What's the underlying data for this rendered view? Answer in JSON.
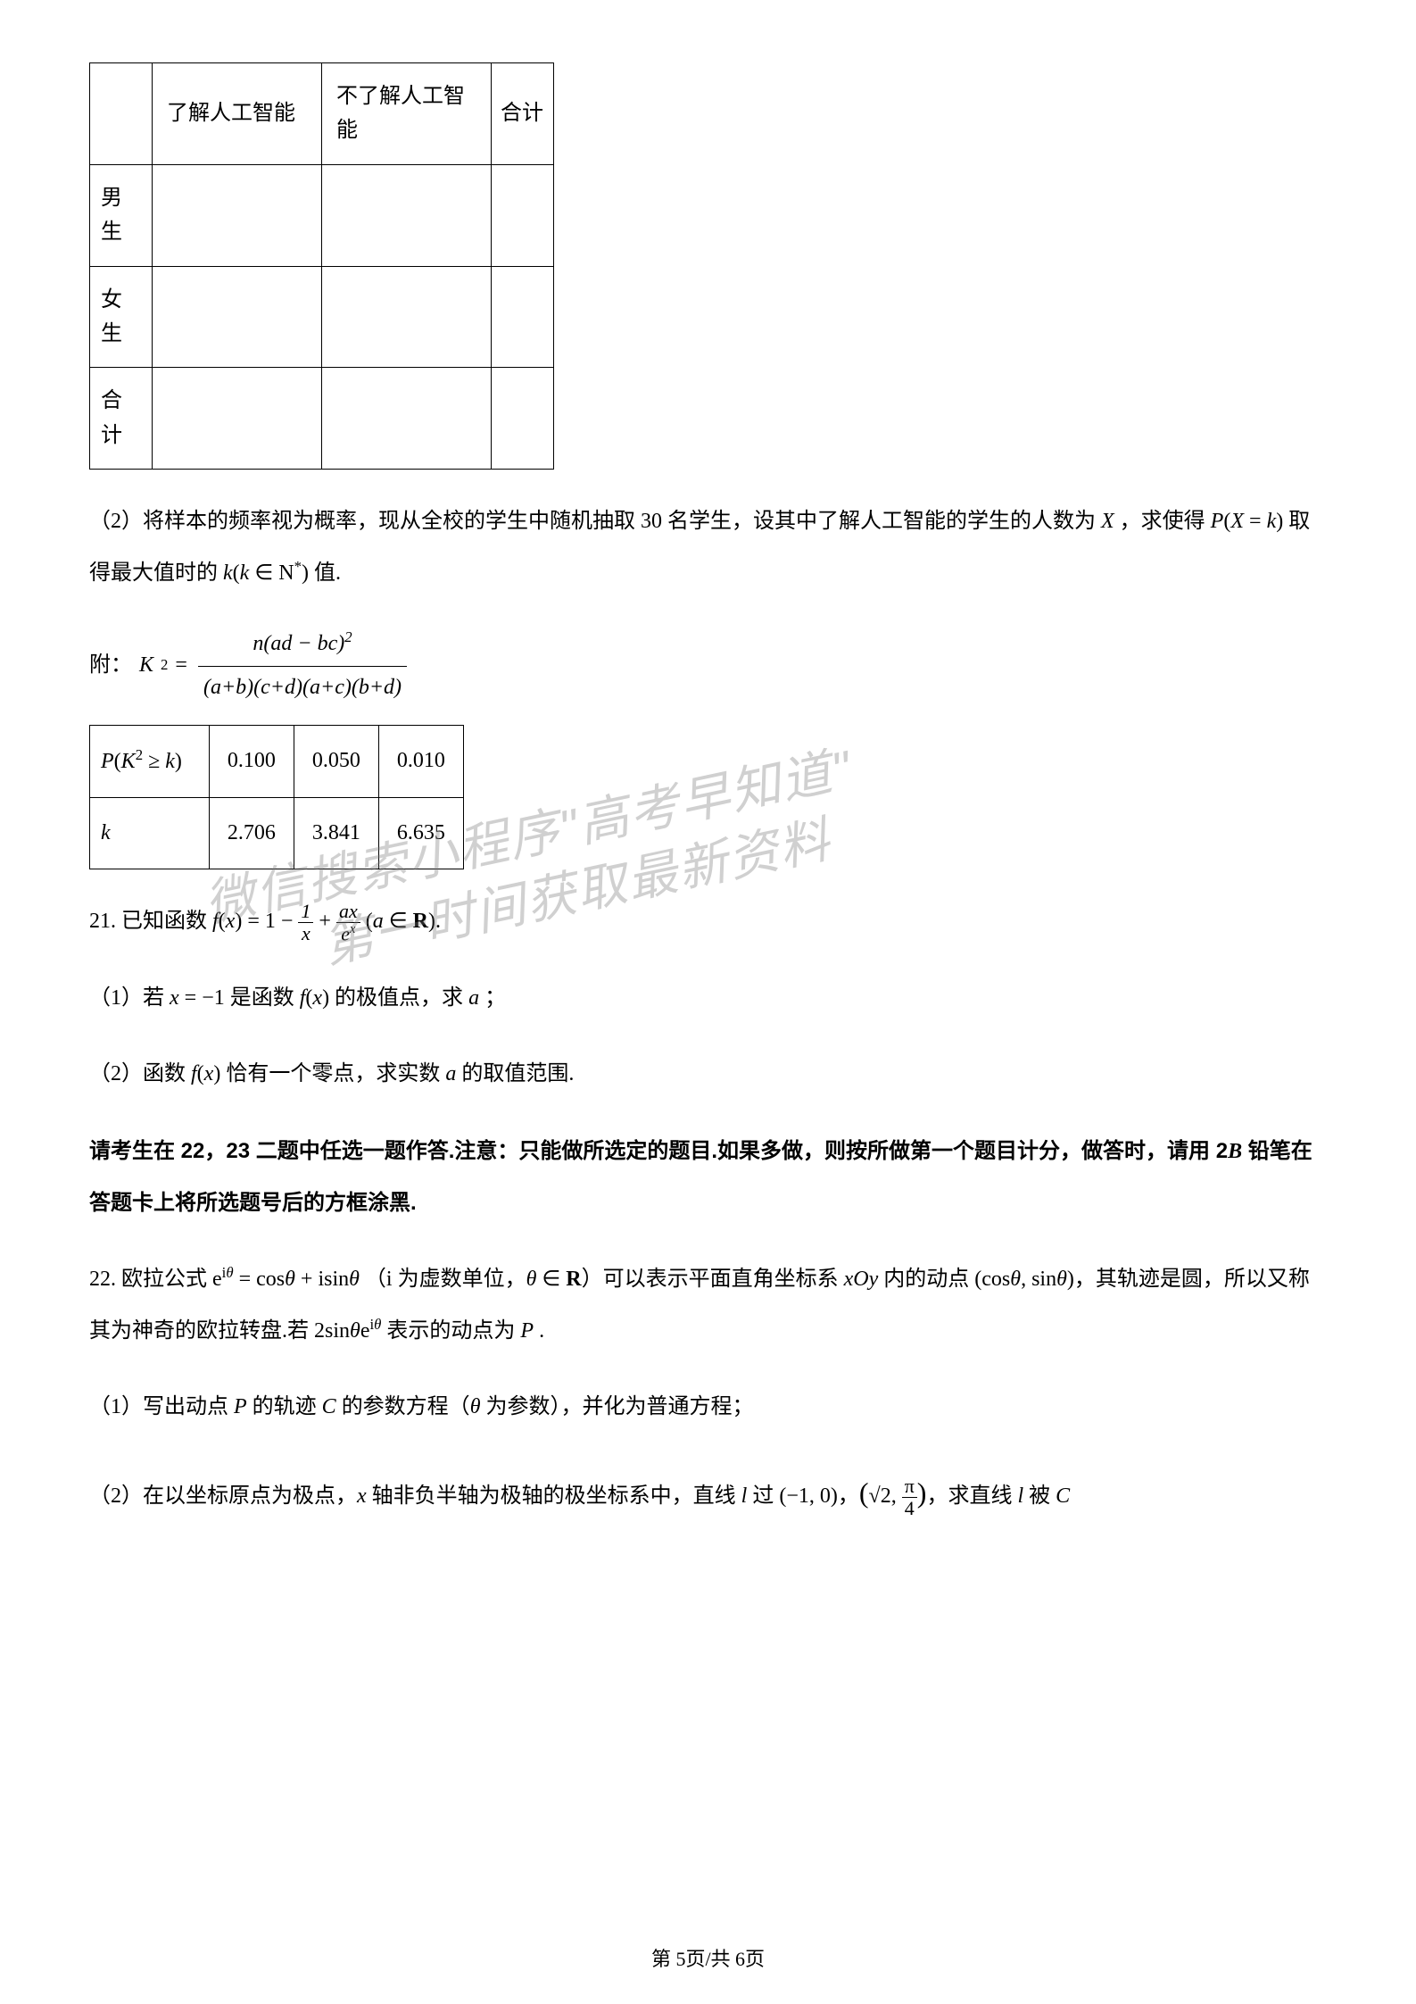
{
  "table1": {
    "headers": [
      "",
      "了解人工智能",
      "不了解人工智能",
      "合计"
    ],
    "rows": [
      "男生",
      "女生",
      "合计"
    ],
    "cells": [
      [
        "",
        "",
        ""
      ],
      [
        "",
        "",
        ""
      ],
      [
        "",
        "",
        ""
      ]
    ]
  },
  "q20_part2": "（2）将样本的频率视为概率，现从全校的学生中随机抽取 30 名学生，设其中了解人工智能的学生的人数为 X ，求使得 P(X = k) 取得最大值时的 k(k ∈ N*) 值.",
  "formula_label": "附：",
  "formula_k2": "K² =",
  "formula_numerator": "n(ad − bc)²",
  "formula_denominator": "(a+b)(c+d)(a+c)(b+d)",
  "table2": {
    "row1_label": "P(K² ≥ k)",
    "row1_values": [
      "0.100",
      "0.050",
      "0.010"
    ],
    "row2_label": "k",
    "row2_values": [
      "2.706",
      "3.841",
      "6.635"
    ]
  },
  "q21": {
    "number": "21.",
    "stem_prefix": "已知函数 ",
    "stem_formula": "f(x) = 1 − 1/x + ax/eˣ (a ∈ R)",
    "stem_suffix": ".",
    "part1": "（1）若 x = −1 是函数 f(x) 的极值点，求 a ；",
    "part2": "（2）函数 f(x) 恰有一个零点，求实数 a 的取值范围."
  },
  "instruction": "请考生在 22，23 二题中任选一题作答.注意：只能做所选定的题目.如果多做，则按所做第一个题目计分，做答时，请用 2B 铅笔在答题卡上将所选题号后的方框涂黑.",
  "q22": {
    "number": "22.",
    "stem": "欧拉公式 eⁱᶿ = cosθ + isinθ （i 为虚数单位，θ ∈ R）可以表示平面直角坐标系 xOy 内的动点 (cosθ, sinθ)，其轨迹是圆，所以又称其为神奇的欧拉转盘.若 2sinθeⁱᶿ 表示的动点为 P .",
    "part1": "（1）写出动点 P 的轨迹 C 的参数方程（θ 为参数），并化为普通方程；",
    "part2_prefix": "（2）在以坐标原点为极点，x 轴非负半轴为极轴的极坐标系中，直线 l 过 (−1,0)，",
    "part2_point": "(√2, π/4)",
    "part2_suffix": "，求直线 l 被 C"
  },
  "watermark": {
    "line1": "微信搜索小程序\"高考早知道\"",
    "line2": "第一时间获取最新资料"
  },
  "footer": "第 5页/共 6页",
  "colors": {
    "text": "#000000",
    "background": "#ffffff",
    "watermark": "rgba(120,120,120,0.35)",
    "border": "#000000"
  }
}
